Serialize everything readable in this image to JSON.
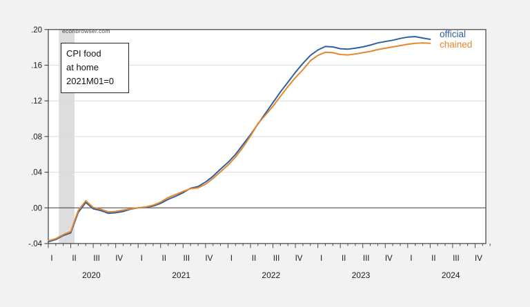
{
  "figure": {
    "background": "#f2f2f2",
    "plot_background": "#ffffff",
    "frame_color": "#4a4a4a",
    "gridline_color": "#dcdcdc",
    "zero_line_color": "#3c3c3c",
    "tick_label_color": "#1a1a1a",
    "recession_band_color": "#dddddd"
  },
  "watermark": {
    "text": "econbrowser.com"
  },
  "annotation": {
    "lines": [
      "CPI food",
      "at home",
      "2021M01=0"
    ]
  },
  "legend": {
    "official": {
      "label": "official",
      "color": "#2d5f9f"
    },
    "chained": {
      "label": "chained",
      "color": "#e6862d"
    }
  },
  "chart_data": {
    "type": "line",
    "title": "CPI food at home, 2021M01=0",
    "x_start": "2020-01",
    "x_end": "2024-04",
    "frequency": "monthly",
    "ylim": [
      -0.04,
      0.2
    ],
    "grid": "horizontal",
    "y_axis": {
      "tick_labels": [
        ".20",
        ".16",
        ".12",
        ".08",
        ".04",
        ".00",
        "-.04"
      ],
      "tick_values": [
        0.2,
        0.16,
        0.12,
        0.08,
        0.04,
        0.0,
        -0.04
      ]
    },
    "x_axis": {
      "quarter_labels": [
        "I",
        "II",
        "III",
        "IV",
        "I",
        "II",
        "III",
        "IV",
        "I",
        "II",
        "III",
        "IV",
        "I",
        "II",
        "III",
        "IV",
        "I",
        "II",
        "III",
        "IV"
      ],
      "year_labels": [
        "2020",
        "2021",
        "2022",
        "2023",
        "2024"
      ],
      "months_total": 60
    },
    "recession_band": {
      "from": "2020-02",
      "to": "2020-04",
      "from_month_index": 1.4,
      "to_month_index": 3.5
    },
    "series": [
      {
        "name": "official",
        "color": "#2d5f9f",
        "values": [
          -0.038,
          -0.0355,
          -0.031,
          -0.028,
          -0.005,
          0.006,
          -0.001,
          -0.003,
          -0.006,
          -0.0055,
          -0.004,
          -0.0015,
          0.0,
          0.0005,
          0.002,
          0.005,
          0.0095,
          0.013,
          0.017,
          0.022,
          0.024,
          0.029,
          0.0355,
          0.0435,
          0.051,
          0.06,
          0.071,
          0.082,
          0.094,
          0.106,
          0.118,
          0.13,
          0.141,
          0.152,
          0.162,
          0.171,
          0.177,
          0.181,
          0.1805,
          0.1785,
          0.178,
          0.179,
          0.1805,
          0.1825,
          0.185,
          0.1865,
          0.188,
          0.19,
          0.1915,
          0.192,
          0.1905,
          0.189
        ]
      },
      {
        "name": "chained",
        "color": "#e6862d",
        "values": [
          -0.037,
          -0.0345,
          -0.03,
          -0.0265,
          -0.003,
          0.008,
          0.0005,
          -0.0015,
          -0.0045,
          -0.004,
          -0.0025,
          -0.001,
          0.0,
          0.001,
          0.003,
          0.0065,
          0.0115,
          0.015,
          0.0185,
          0.0215,
          0.0225,
          0.0265,
          0.033,
          0.0405,
          0.048,
          0.057,
          0.068,
          0.0805,
          0.0945,
          0.104,
          0.114,
          0.125,
          0.136,
          0.146,
          0.155,
          0.165,
          0.171,
          0.1745,
          0.174,
          0.172,
          0.1715,
          0.1725,
          0.174,
          0.1755,
          0.1775,
          0.179,
          0.1805,
          0.182,
          0.1835,
          0.1845,
          0.185,
          0.1845
        ]
      }
    ]
  }
}
